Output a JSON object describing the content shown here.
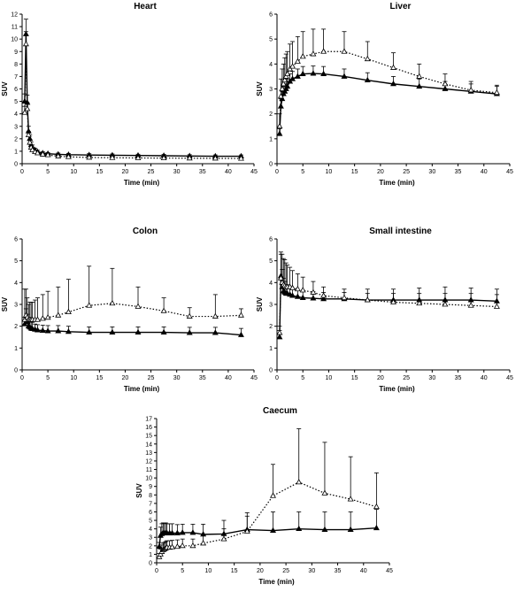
{
  "chart_data": [
    {
      "type": "line",
      "title": "Heart",
      "xlabel": "Time (min)",
      "ylabel": "SUV",
      "xlim": [
        0,
        45
      ],
      "ylim": [
        0,
        12
      ],
      "xticks": [
        0,
        5,
        10,
        15,
        20,
        25,
        30,
        35,
        40,
        45
      ],
      "yticks": [
        0,
        1,
        2,
        3,
        4,
        5,
        6,
        7,
        8,
        9,
        10,
        11,
        12
      ],
      "grid": false,
      "legend": "none",
      "series": [
        {
          "style": "solid",
          "marker": "filled-triangle",
          "x": [
            0.5,
            0.75,
            1.0,
            1.25,
            1.5,
            1.75,
            2,
            2.5,
            3,
            4,
            5,
            7,
            9,
            13,
            17.5,
            22.5,
            27.5,
            32.5,
            37.5,
            42.5
          ],
          "y": [
            5.0,
            10.4,
            4.9,
            2.6,
            2.0,
            1.5,
            1.3,
            1.1,
            0.95,
            0.85,
            0.8,
            0.75,
            0.72,
            0.7,
            0.68,
            0.66,
            0.64,
            0.62,
            0.6,
            0.6
          ],
          "err": [
            0.6,
            1.2,
            0.6,
            0.4,
            0.3,
            0.25,
            0.2,
            0.15,
            0.12,
            0.1,
            0.1,
            0.1,
            0.1,
            0.1,
            0.1,
            0.1,
            0.1,
            0.1,
            0.1,
            0.1
          ]
        },
        {
          "style": "dotted",
          "marker": "open-triangle",
          "x": [
            0.5,
            0.75,
            1.0,
            1.25,
            1.5,
            1.75,
            2,
            2.5,
            3,
            4,
            5,
            7,
            9,
            13,
            17.5,
            22.5,
            27.5,
            32.5,
            37.5,
            42.5
          ],
          "y": [
            4.1,
            9.6,
            4.4,
            2.3,
            1.7,
            1.3,
            1.1,
            0.95,
            0.85,
            0.75,
            0.7,
            0.6,
            0.55,
            0.5,
            0.48,
            0.46,
            0.45,
            0.44,
            0.43,
            0.42
          ],
          "err": [
            0.5,
            1.0,
            0.5,
            0.3,
            0.25,
            0.2,
            0.15,
            0.12,
            0.1,
            0.1,
            0.1,
            0.1,
            0.1,
            0.1,
            0.1,
            0.1,
            0.1,
            0.1,
            0.1,
            0.1
          ]
        }
      ]
    },
    {
      "type": "line",
      "title": "Liver",
      "xlabel": "Time (min)",
      "ylabel": "SUV",
      "xlim": [
        0,
        45
      ],
      "ylim": [
        0,
        6
      ],
      "xticks": [
        0,
        5,
        10,
        15,
        20,
        25,
        30,
        35,
        40,
        45
      ],
      "yticks": [
        0,
        1,
        2,
        3,
        4,
        5,
        6
      ],
      "grid": false,
      "legend": "none",
      "series": [
        {
          "style": "solid",
          "marker": "filled-triangle",
          "x": [
            0.5,
            0.75,
            1.0,
            1.25,
            1.5,
            1.75,
            2,
            2.5,
            3,
            4,
            5,
            7,
            9,
            13,
            17.5,
            22.5,
            27.5,
            32.5,
            37.5,
            42.5
          ],
          "y": [
            1.2,
            2.3,
            2.6,
            2.8,
            2.9,
            3.0,
            3.1,
            3.3,
            3.4,
            3.5,
            3.6,
            3.62,
            3.6,
            3.5,
            3.35,
            3.2,
            3.1,
            3.0,
            2.9,
            2.8
          ],
          "err": [
            0.2,
            0.3,
            0.3,
            0.3,
            0.3,
            0.3,
            0.3,
            0.3,
            0.3,
            0.3,
            0.3,
            0.3,
            0.3,
            0.3,
            0.3,
            0.3,
            0.3,
            0.3,
            0.3,
            0.3
          ]
        },
        {
          "style": "dotted",
          "marker": "open-triangle",
          "x": [
            0.5,
            0.75,
            1.0,
            1.25,
            1.5,
            1.75,
            2,
            2.5,
            3,
            4,
            5,
            7,
            9,
            13,
            17.5,
            22.5,
            27.5,
            32.5,
            37.5,
            42.5
          ],
          "y": [
            1.5,
            2.7,
            3.0,
            3.2,
            3.35,
            3.5,
            3.6,
            3.8,
            3.9,
            4.1,
            4.3,
            4.4,
            4.5,
            4.5,
            4.2,
            3.85,
            3.5,
            3.2,
            2.95,
            2.85
          ],
          "err": [
            0.5,
            0.7,
            0.8,
            0.8,
            0.9,
            0.9,
            0.9,
            1.0,
            1.0,
            1.0,
            1.0,
            1.0,
            0.9,
            0.8,
            0.7,
            0.6,
            0.5,
            0.4,
            0.35,
            0.3
          ]
        }
      ]
    },
    {
      "type": "line",
      "title": "Colon",
      "xlabel": "Time (min)",
      "ylabel": "SUV",
      "xlim": [
        0,
        45
      ],
      "ylim": [
        0,
        6
      ],
      "xticks": [
        0,
        5,
        10,
        15,
        20,
        25,
        30,
        35,
        40,
        45
      ],
      "yticks": [
        0,
        1,
        2,
        3,
        4,
        5,
        6
      ],
      "grid": false,
      "legend": "none",
      "series": [
        {
          "style": "solid",
          "marker": "filled-triangle",
          "x": [
            0.5,
            0.75,
            1.0,
            1.25,
            1.5,
            1.75,
            2,
            2.5,
            3,
            4,
            5,
            7,
            9,
            13,
            17.5,
            22.5,
            27.5,
            32.5,
            37.5,
            42.5
          ],
          "y": [
            2.1,
            2.4,
            2.2,
            2.0,
            1.95,
            1.9,
            1.88,
            1.85,
            1.82,
            1.8,
            1.78,
            1.78,
            1.75,
            1.72,
            1.72,
            1.72,
            1.72,
            1.7,
            1.7,
            1.6
          ],
          "err": [
            0.3,
            0.4,
            0.35,
            0.3,
            0.3,
            0.3,
            0.3,
            0.25,
            0.25,
            0.25,
            0.25,
            0.25,
            0.25,
            0.25,
            0.25,
            0.25,
            0.25,
            0.25,
            0.25,
            0.3
          ]
        },
        {
          "style": "dotted",
          "marker": "open-triangle",
          "x": [
            0.5,
            0.75,
            1.0,
            1.25,
            1.5,
            1.75,
            2,
            2.5,
            3,
            4,
            5,
            7,
            9,
            13,
            17.5,
            22.5,
            27.5,
            32.5,
            37.5,
            42.5
          ],
          "y": [
            2.3,
            2.5,
            2.4,
            2.3,
            2.3,
            2.3,
            2.3,
            2.3,
            2.3,
            2.35,
            2.4,
            2.5,
            2.65,
            2.95,
            3.05,
            2.9,
            2.7,
            2.45,
            2.45,
            2.5
          ],
          "err": [
            1.4,
            1.2,
            0.9,
            0.7,
            0.8,
            0.8,
            0.8,
            0.9,
            1.0,
            1.1,
            1.2,
            1.3,
            1.5,
            1.8,
            1.6,
            0.9,
            0.6,
            0.4,
            1.0,
            0.3
          ]
        }
      ]
    },
    {
      "type": "line",
      "title": "Small intestine",
      "xlabel": "Time (min)",
      "ylabel": "SUV",
      "xlim": [
        0,
        45
      ],
      "ylim": [
        0,
        6
      ],
      "xticks": [
        0,
        5,
        10,
        15,
        20,
        25,
        30,
        35,
        40,
        45
      ],
      "yticks": [
        0,
        1,
        2,
        3,
        4,
        5,
        6
      ],
      "grid": false,
      "legend": "none",
      "series": [
        {
          "style": "solid",
          "marker": "filled-triangle",
          "x": [
            0.5,
            0.75,
            1.0,
            1.25,
            1.5,
            1.75,
            2,
            2.5,
            3,
            4,
            5,
            7,
            9,
            13,
            17.5,
            22.5,
            27.5,
            32.5,
            37.5,
            42.5
          ],
          "y": [
            1.5,
            4.3,
            3.8,
            3.6,
            3.55,
            3.5,
            3.5,
            3.45,
            3.4,
            3.35,
            3.3,
            3.28,
            3.25,
            3.25,
            3.2,
            3.2,
            3.2,
            3.2,
            3.2,
            3.15
          ],
          "err": [
            0.3,
            1.0,
            0.8,
            0.6,
            0.5,
            0.4,
            0.4,
            0.3,
            0.3,
            0.3,
            0.3,
            0.3,
            0.3,
            0.3,
            0.3,
            0.3,
            0.3,
            0.3,
            0.3,
            0.3
          ]
        },
        {
          "style": "dotted",
          "marker": "open-triangle",
          "x": [
            0.5,
            0.75,
            1.0,
            1.25,
            1.5,
            1.75,
            2,
            2.5,
            3,
            4,
            5,
            7,
            9,
            13,
            17.5,
            22.5,
            27.5,
            32.5,
            37.5,
            42.5
          ],
          "y": [
            1.7,
            4.2,
            4.0,
            3.9,
            3.85,
            3.8,
            3.8,
            3.8,
            3.75,
            3.7,
            3.65,
            3.55,
            3.4,
            3.3,
            3.2,
            3.1,
            3.05,
            3.0,
            2.95,
            2.9
          ],
          "err": [
            0.3,
            1.2,
            1.3,
            1.2,
            1.2,
            1.1,
            1.0,
            0.9,
            0.8,
            0.7,
            0.6,
            0.5,
            0.4,
            0.4,
            0.5,
            0.6,
            0.7,
            0.8,
            0.8,
            0.8
          ]
        }
      ]
    },
    {
      "type": "line",
      "title": "Caecum",
      "xlabel": "Time (min)",
      "ylabel": "SUV",
      "xlim": [
        0,
        45
      ],
      "ylim": [
        0,
        17
      ],
      "xticks": [
        0,
        5,
        10,
        15,
        20,
        25,
        30,
        35,
        40,
        45
      ],
      "yticks": [
        0,
        1,
        2,
        3,
        4,
        5,
        6,
        7,
        8,
        9,
        10,
        11,
        12,
        13,
        14,
        15,
        16,
        17
      ],
      "grid": false,
      "legend": "none",
      "series": [
        {
          "style": "solid",
          "marker": "filled-triangle",
          "x": [
            0.5,
            0.75,
            1.0,
            1.25,
            1.5,
            1.75,
            2,
            2.5,
            3,
            4,
            5,
            7,
            9,
            13,
            17.5,
            22.5,
            27.5,
            32.5,
            37.5,
            42.5
          ],
          "y": [
            1.9,
            3.2,
            3.4,
            3.5,
            3.5,
            3.5,
            3.5,
            3.5,
            3.5,
            3.5,
            3.55,
            3.55,
            3.35,
            3.4,
            3.9,
            3.8,
            4.0,
            3.9,
            3.9,
            4.1
          ],
          "err": [
            0.5,
            1.0,
            1.2,
            1.2,
            1.2,
            1.2,
            1.1,
            1.1,
            1.1,
            1.0,
            1.0,
            1.0,
            1.2,
            1.6,
            2.0,
            2.2,
            2.0,
            2.1,
            2.1,
            2.2
          ]
        },
        {
          "style": "dotted",
          "marker": "open-triangle",
          "x": [
            0.5,
            0.75,
            1.0,
            1.25,
            1.5,
            1.75,
            2,
            2.5,
            3,
            4,
            5,
            7,
            9,
            13,
            17.5,
            22.5,
            27.5,
            32.5,
            37.5,
            42.5
          ],
          "y": [
            0.7,
            1.0,
            1.3,
            1.5,
            1.6,
            1.7,
            1.8,
            1.8,
            1.85,
            1.9,
            2.0,
            2.0,
            2.3,
            2.8,
            3.7,
            7.9,
            9.5,
            8.2,
            7.5,
            6.6
          ],
          "err": [
            0.4,
            0.6,
            0.8,
            0.8,
            0.8,
            0.8,
            0.8,
            0.8,
            0.8,
            0.8,
            0.8,
            0.8,
            1.0,
            1.2,
            1.8,
            3.7,
            6.3,
            6.0,
            5.0,
            4.0
          ]
        }
      ]
    }
  ]
}
